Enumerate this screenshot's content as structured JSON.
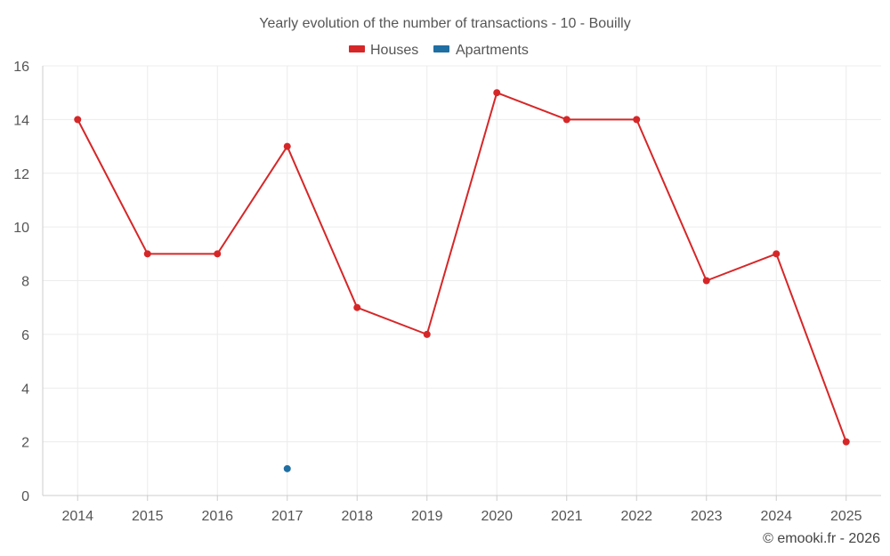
{
  "chart_data": {
    "type": "line",
    "title": "Yearly evolution of the number of transactions - 10 - Bouilly",
    "categories": [
      "2014",
      "2015",
      "2016",
      "2017",
      "2018",
      "2019",
      "2020",
      "2021",
      "2022",
      "2023",
      "2024",
      "2025"
    ],
    "series": [
      {
        "name": "Houses",
        "color": "#d62728",
        "values": [
          14,
          9,
          9,
          13,
          7,
          6,
          15,
          14,
          14,
          8,
          9,
          2
        ]
      },
      {
        "name": "Apartments",
        "color": "#1f6fa3",
        "values": [
          null,
          null,
          null,
          1,
          null,
          null,
          null,
          null,
          null,
          null,
          null,
          null
        ]
      }
    ],
    "ylim": [
      0,
      16
    ],
    "yticks": [
      0,
      2,
      4,
      6,
      8,
      10,
      12,
      14,
      16
    ],
    "xlabel": "",
    "ylabel": "",
    "grid": true,
    "legend_position": "top-center"
  },
  "credit": "© emooki.fr - 2026"
}
